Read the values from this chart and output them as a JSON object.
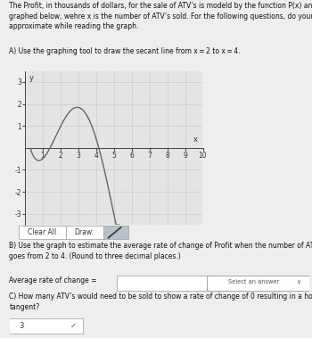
{
  "title_text": "The Profit, in thousands of dollars, for the sale of ATV’s is modeld by the function P(x) and is\ngraphed below, wehre x is the number of ATV’s sold. For the following questions, do your best to\napproximate while reading the graph.",
  "question_A": "A) Use the graphing tool to draw the secant line from x = 2 to x = 4.",
  "question_B": "B) Use the graph to estimate the average rate of change of Profit when the number of ATV’s sold\ngoes from 2 to 4. (Round to three decimal places.)",
  "label_avg": "Average rate of change =",
  "label_select": "Select an answer",
  "question_C": "C) How many ATV’s would need to be sold to show a rate of change of 0 resulting in a horizontal\ntangent?",
  "answer_C": "3",
  "xlim": [
    0,
    10
  ],
  "ylim": [
    -3.5,
    3.5
  ],
  "xticks": [
    1,
    2,
    3,
    4,
    5,
    6,
    7,
    8,
    9,
    10
  ],
  "yticks": [
    -3,
    -2,
    -1,
    1,
    2,
    3
  ],
  "xlabel": "x",
  "ylabel": "y",
  "grid_color": "#cccccc",
  "curve_color": "#666666",
  "bg_color": "#eeeeee",
  "plot_bg": "#e4e4e4",
  "fig_bg": "#eeeeee"
}
